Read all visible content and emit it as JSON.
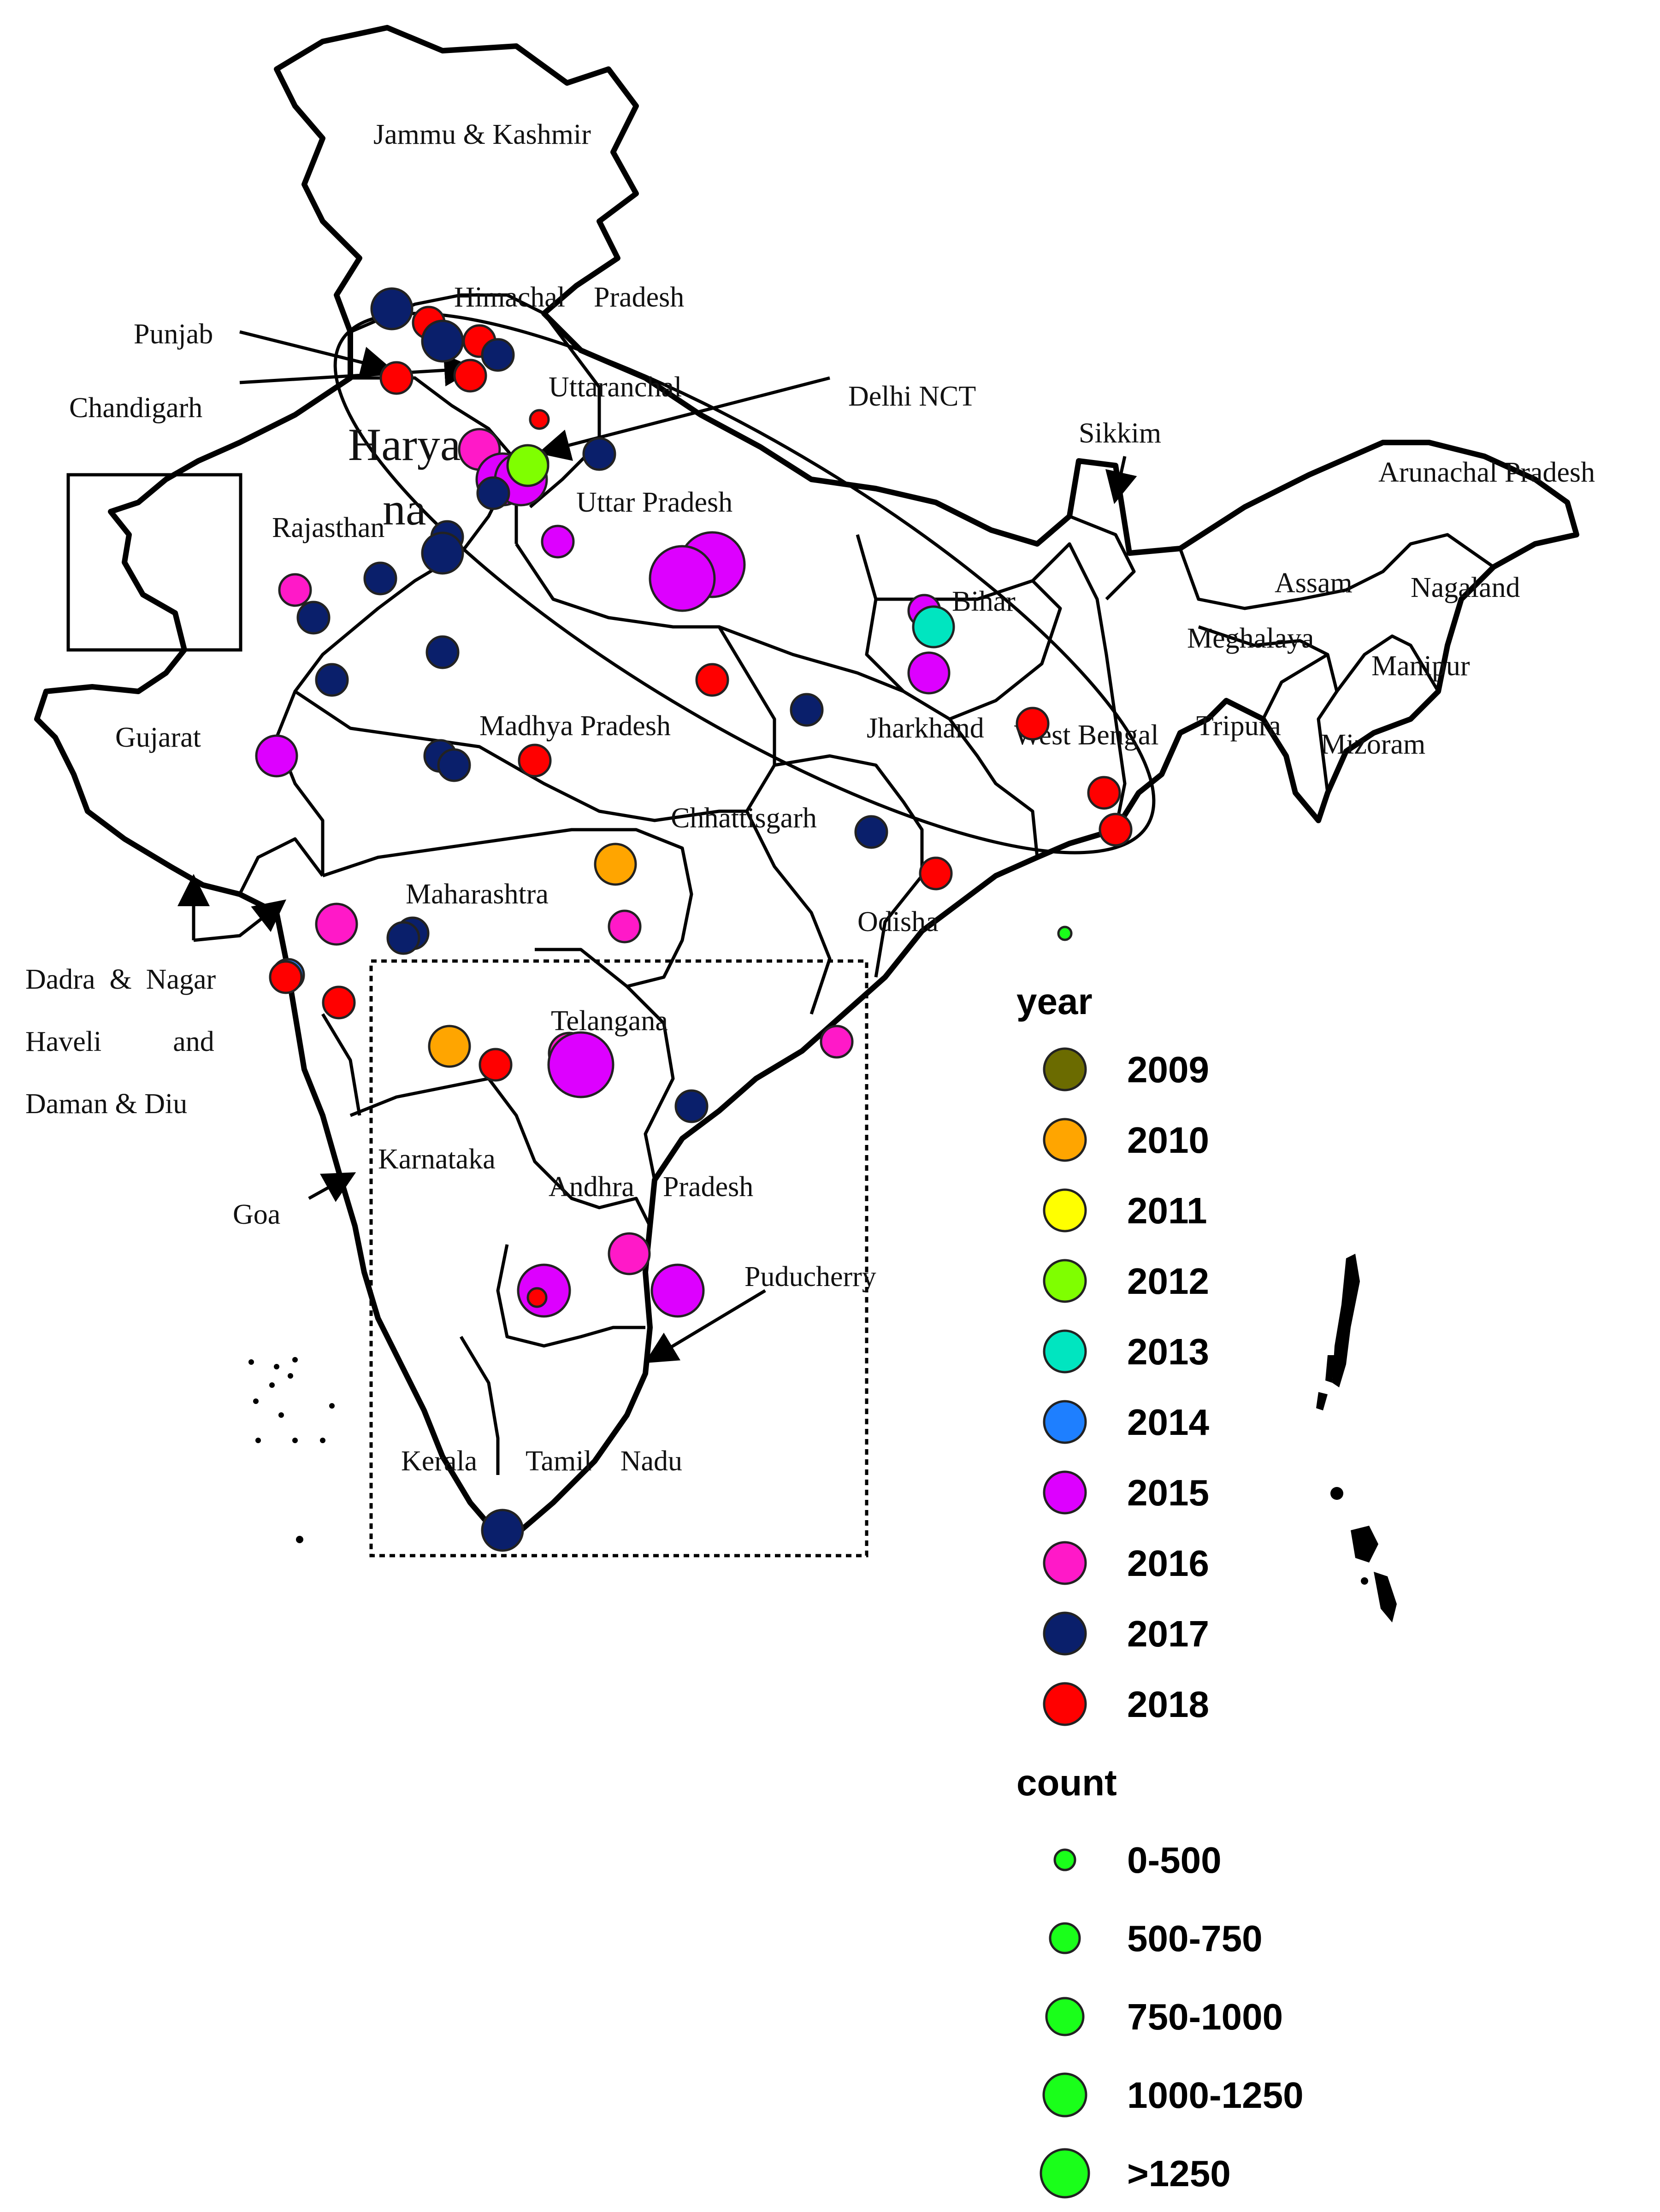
{
  "labels": {
    "jammu_kashmir": "Jammu & Kashmir",
    "himachal": "Himachal    Pradesh",
    "punjab": "Punjab",
    "chandigarh": "Chandigarh",
    "uttaranchal": "Uttaranchal",
    "delhi": "Delhi NCT",
    "haryana_1": "Harya",
    "haryana_2": "na",
    "uttar_pradesh": "Uttar Pradesh",
    "rajasthan": "Rajasthan",
    "sikkim": "Sikkim",
    "arunachal": "Arunachal Pradesh",
    "assam": "Assam",
    "nagaland": "Nagaland",
    "meghalaya": "Meghalaya",
    "manipur": "Manipur",
    "bihar": "Bihar",
    "gujarat": "Gujarat",
    "madhya_pradesh": "Madhya Pradesh",
    "jharkhand": "Jharkhand",
    "west_bengal": "West Bengal",
    "tripura": "Tripura",
    "mizoram": "Mizoram",
    "chhattisgarh": "Chhattisgarh",
    "maharashtra": "Maharashtra",
    "odisha": "Odisha",
    "dadra_1": "Dadra  &  Nagar",
    "dadra_2": "Haveli          and",
    "dadra_3": "Daman & Diu",
    "telangana": "Telangana",
    "karnataka": "Karnataka",
    "andhra": "Andhra    Pradesh",
    "goa": "Goa",
    "puducherry": "Puducherry",
    "kerala": "Kerala",
    "tamil_nadu": "Tamil    Nadu"
  },
  "legend": {
    "year_title": "year",
    "count_title": "count",
    "years": [
      {
        "label": "2009",
        "color": "#6b6b00"
      },
      {
        "label": "2010",
        "color": "#ffa500"
      },
      {
        "label": "2011",
        "color": "#ffff00"
      },
      {
        "label": "2012",
        "color": "#7fff00"
      },
      {
        "label": "2013",
        "color": "#00e5c0"
      },
      {
        "label": "2014",
        "color": "#1e7fff"
      },
      {
        "label": "2015",
        "color": "#dd00ff"
      },
      {
        "label": "2016",
        "color": "#ff19c8"
      },
      {
        "label": "2017",
        "color": "#0a1f6b"
      },
      {
        "label": "2018",
        "color": "#ff0000"
      }
    ],
    "counts": [
      {
        "label": "0-500"
      },
      {
        "label": "500-750"
      },
      {
        "label": "750-1000"
      },
      {
        "label": "1000-1250"
      },
      {
        "label": ">1250"
      }
    ],
    "count_color": "#1aff1a"
  }
}
